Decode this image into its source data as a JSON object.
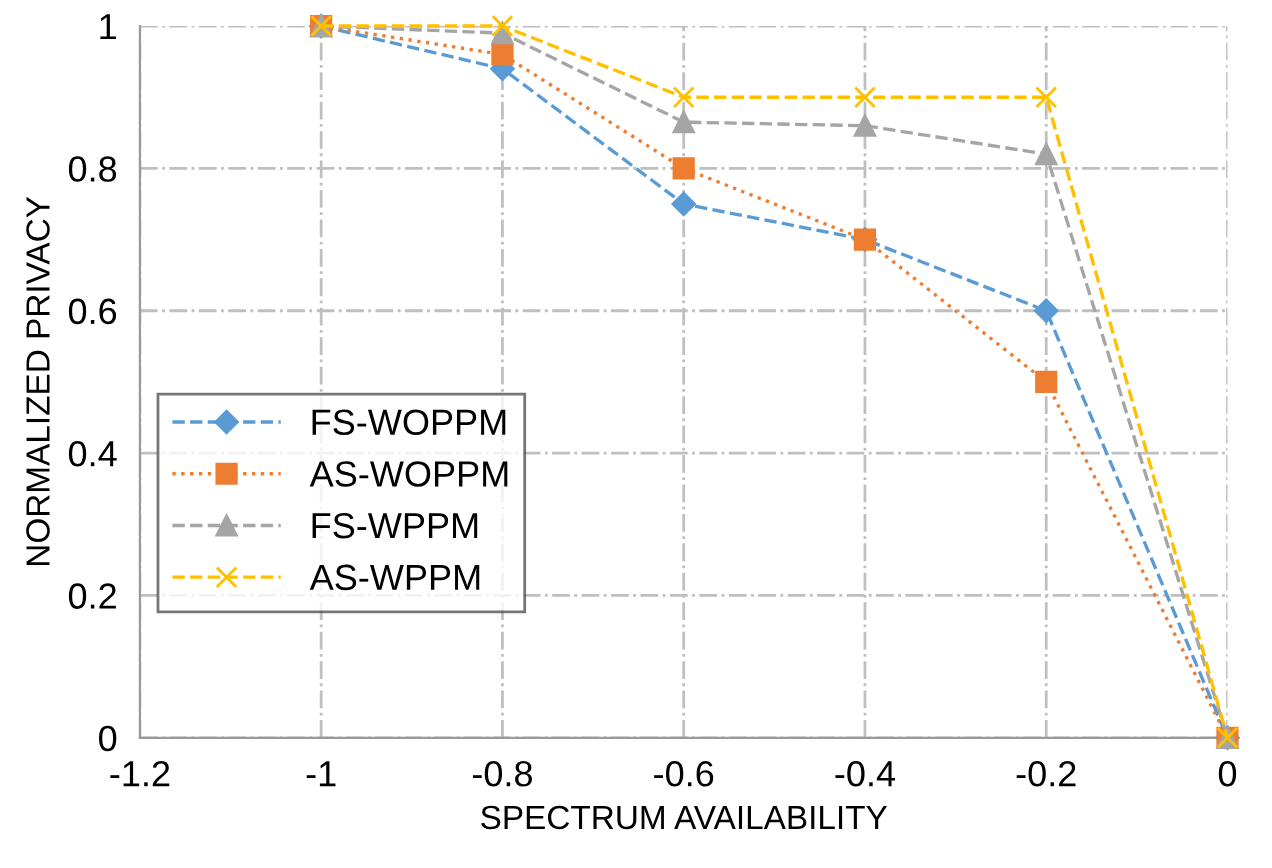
{
  "chart_data": {
    "type": "line",
    "xlabel": "SPECTRUM AVAILABILITY",
    "ylabel": "NORMALIZED PRIVACY",
    "x": [
      -1,
      -0.8,
      -0.6,
      -0.4,
      -0.2,
      0
    ],
    "series": [
      {
        "name": "FS-WOPPM",
        "color": "#5b9bd5",
        "marker": "diamond",
        "line_style": "dashed",
        "values": [
          1,
          0.94,
          0.75,
          0.7,
          0.6,
          0
        ]
      },
      {
        "name": "AS-WOPPM",
        "color": "#ed7d31",
        "marker": "square",
        "line_style": "dotted",
        "values": [
          1,
          0.96,
          0.8,
          0.7,
          0.5,
          0
        ]
      },
      {
        "name": "FS-WPPM",
        "color": "#a5a5a5",
        "marker": "triangle",
        "line_style": "dashed",
        "values": [
          1,
          0.99,
          0.865,
          0.86,
          0.82,
          0
        ]
      },
      {
        "name": "AS-WPPM",
        "color": "#ffc000",
        "marker": "cross",
        "line_style": "dashed",
        "values": [
          1,
          1,
          0.9,
          0.9,
          0.9,
          0
        ]
      }
    ],
    "xlim": [
      -1.2,
      0
    ],
    "xticks": [
      -1.2,
      -1,
      -0.8,
      -0.6,
      -0.4,
      -0.2,
      0
    ],
    "ylim": [
      0,
      1
    ],
    "yticks": [
      0,
      0.2,
      0.4,
      0.6,
      0.8,
      1
    ],
    "grid": true,
    "legend": "left"
  }
}
